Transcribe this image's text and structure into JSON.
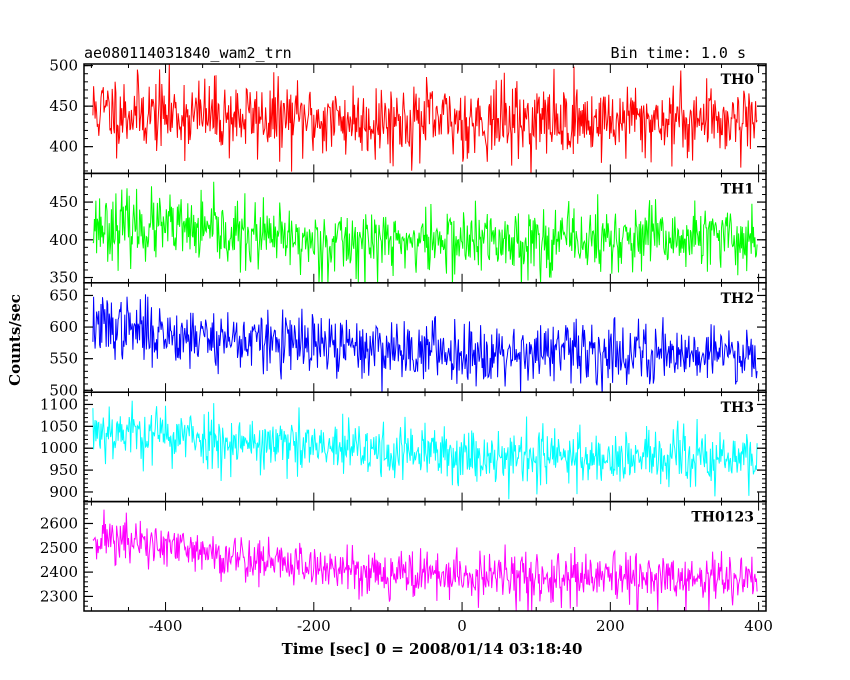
{
  "header": {
    "title": "ae080114031840_wam2_trn",
    "bin_time": "Bin time: 1.0 s"
  },
  "chart_data": {
    "type": "line",
    "title": "ae080114031840_wam2_trn",
    "xlabel": "Time [sec] 0 = 2008/01/14 03:18:40",
    "ylabel": "Counts/sec",
    "xlim": [
      -510,
      410
    ],
    "x_ticks": [
      -400,
      -200,
      0,
      200,
      400
    ],
    "x_start": -498,
    "x_end": 398,
    "x_step": 1,
    "panels": [
      {
        "name": "TH0",
        "color": "#ff0000",
        "ylim": [
          367,
          502
        ],
        "y_ticks": [
          400,
          450,
          500
        ],
        "trend": [
          [
            -498,
            445
          ],
          [
            -400,
            440
          ],
          [
            -200,
            433
          ],
          [
            0,
            432
          ],
          [
            200,
            432
          ],
          [
            398,
            435
          ]
        ],
        "noise_sd": 23,
        "seed": 11
      },
      {
        "name": "TH1",
        "color": "#00ff00",
        "ylim": [
          343,
          488
        ],
        "y_ticks": [
          350,
          400,
          450
        ],
        "trend": [
          [
            -498,
            420
          ],
          [
            -400,
            415
          ],
          [
            -200,
            397
          ],
          [
            0,
            398
          ],
          [
            200,
            400
          ],
          [
            398,
            402
          ]
        ],
        "noise_sd": 22,
        "seed": 23
      },
      {
        "name": "TH2",
        "color": "#0000ff",
        "ylim": [
          497,
          670
        ],
        "y_ticks": [
          500,
          550,
          600,
          650
        ],
        "trend": [
          [
            -498,
            603
          ],
          [
            -400,
            590
          ],
          [
            -200,
            570
          ],
          [
            0,
            561
          ],
          [
            200,
            560
          ],
          [
            398,
            560
          ]
        ],
        "noise_sd": 24,
        "seed": 37
      },
      {
        "name": "TH3",
        "color": "#00ffff",
        "ylim": [
          878,
          1128
        ],
        "y_ticks": [
          900,
          950,
          1000,
          1050,
          1100
        ],
        "trend": [
          [
            -498,
            1045
          ],
          [
            -400,
            1030
          ],
          [
            -200,
            1000
          ],
          [
            0,
            985
          ],
          [
            200,
            978
          ],
          [
            398,
            975
          ]
        ],
        "noise_sd": 33,
        "seed": 53
      },
      {
        "name": "TH0123",
        "color": "#ff00ff",
        "ylim": [
          2240,
          2690
        ],
        "y_ticks": [
          2300,
          2400,
          2500,
          2600
        ],
        "trend": [
          [
            -498,
            2550
          ],
          [
            -400,
            2500
          ],
          [
            -200,
            2420
          ],
          [
            0,
            2380
          ],
          [
            200,
            2370
          ],
          [
            398,
            2370
          ]
        ],
        "noise_sd": 50,
        "seed": 71
      }
    ]
  }
}
